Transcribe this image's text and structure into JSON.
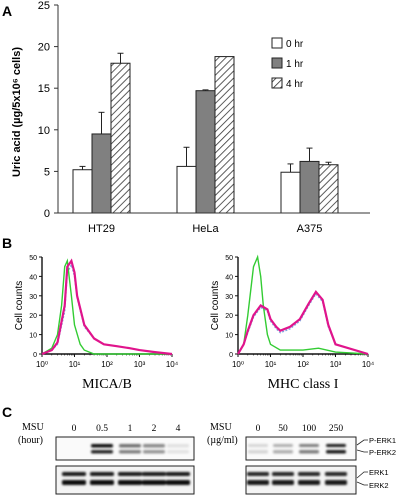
{
  "panels": {
    "A": "A",
    "B": "B",
    "C": "C"
  },
  "chart_data": [
    {
      "type": "bar",
      "panel": "A",
      "ylabel": "Uric acid (µg/5x10⁶ cells)",
      "ylim": [
        0,
        25
      ],
      "yticks": [
        "0",
        "5",
        "10",
        "15",
        "20",
        "25"
      ],
      "categories": [
        "HT29",
        "HeLa",
        "A375"
      ],
      "series": [
        {
          "name": "0 hr",
          "fill": "#ffffff",
          "values": [
            5.2,
            5.6,
            4.9
          ],
          "errors": [
            0.4,
            2.3,
            1.0
          ]
        },
        {
          "name": "1 hr",
          "fill": "#808080",
          "values": [
            9.5,
            14.7,
            6.2
          ],
          "errors": [
            2.6,
            0.1,
            1.6
          ]
        },
        {
          "name": "4 hr",
          "fill": "hatched",
          "values": [
            18.0,
            18.8,
            5.8
          ],
          "errors": [
            1.2,
            0.0,
            0.3
          ]
        }
      ],
      "legend_position": "top-right"
    },
    {
      "type": "line",
      "panel": "B-left",
      "xlabel": "MICA/B",
      "ylabel": "Cell counts",
      "x_scale": "log",
      "xticks": [
        "10⁰",
        "10¹",
        "10²",
        "10³",
        "10⁴"
      ],
      "yticks": [
        "0",
        "10",
        "20",
        "30",
        "40",
        "50"
      ],
      "ylim": [
        0,
        50
      ],
      "series": [
        {
          "color": "#33cc33",
          "x": [
            1,
            2,
            3,
            4,
            5,
            6,
            8,
            10,
            15,
            20,
            40,
            100,
            1000,
            10000
          ],
          "y": [
            0,
            3,
            10,
            25,
            45,
            48,
            30,
            15,
            5,
            2,
            0,
            0,
            0,
            0
          ]
        },
        {
          "color": "#e0148c",
          "x": [
            1,
            2,
            3,
            5,
            6,
            8,
            10,
            12,
            20,
            40,
            80,
            200,
            500,
            1000,
            3000,
            10000
          ],
          "y": [
            0,
            2,
            6,
            25,
            45,
            48,
            42,
            30,
            15,
            8,
            5,
            4,
            3,
            2,
            1,
            0
          ]
        },
        {
          "color": "#7ea6e0",
          "x": [
            1,
            2,
            3,
            5,
            6,
            8,
            10,
            12,
            20,
            40,
            80,
            200,
            500,
            1000,
            3000,
            10000
          ],
          "y": [
            0,
            2,
            5,
            22,
            42,
            46,
            40,
            29,
            14,
            8,
            5,
            4,
            3,
            2,
            1,
            0
          ]
        }
      ]
    },
    {
      "type": "line",
      "panel": "B-right",
      "xlabel": "MHC class I",
      "ylabel": "Cell counts",
      "x_scale": "log",
      "xticks": [
        "10⁰",
        "10¹",
        "10²",
        "10³",
        "10⁴"
      ],
      "yticks": [
        "0",
        "10",
        "20",
        "30",
        "40",
        "50"
      ],
      "ylim": [
        0,
        50
      ],
      "series": [
        {
          "color": "#33cc33",
          "x": [
            1,
            1.5,
            2,
            3,
            4,
            5,
            6,
            8,
            10,
            20,
            50,
            100,
            300,
            1000,
            10000
          ],
          "y": [
            0,
            5,
            20,
            45,
            50,
            40,
            25,
            10,
            5,
            2,
            2,
            2,
            3,
            1,
            0
          ]
        },
        {
          "color": "#e0148c",
          "x": [
            1,
            1.5,
            2,
            3,
            5,
            8,
            10,
            15,
            20,
            40,
            80,
            150,
            250,
            400,
            600,
            1000,
            10000
          ],
          "y": [
            0,
            5,
            12,
            20,
            25,
            23,
            18,
            14,
            12,
            14,
            18,
            26,
            32,
            28,
            15,
            5,
            0
          ]
        },
        {
          "color": "#7ea6e0",
          "x": [
            1,
            1.5,
            2,
            3,
            5,
            8,
            10,
            15,
            20,
            40,
            80,
            150,
            250,
            400,
            600,
            1000,
            10000
          ],
          "y": [
            0,
            5,
            11,
            19,
            24,
            22,
            17,
            13,
            11,
            13,
            17,
            25,
            31,
            27,
            14,
            5,
            0
          ]
        }
      ]
    }
  ],
  "blots": {
    "left": {
      "condition": "MSU",
      "unit": "(hour)",
      "lanes": [
        "0",
        "0.5",
        "1",
        "2",
        "4"
      ]
    },
    "right": {
      "condition": "MSU",
      "unit": "(µg/ml)",
      "lanes": [
        "0",
        "50",
        "100",
        "250"
      ]
    },
    "labels_top": [
      "P-ERK1",
      "P-ERK2"
    ],
    "labels_bottom": [
      "ERK1",
      "ERK2"
    ]
  }
}
